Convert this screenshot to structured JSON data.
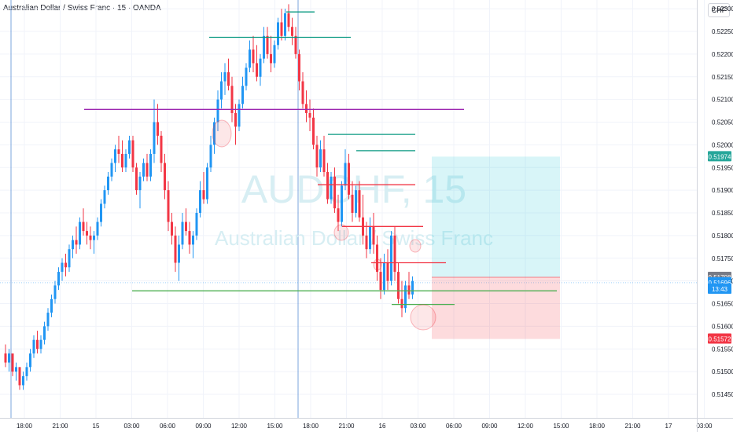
{
  "header": {
    "title": "Australian Dollar / Swiss Franc · 15 · OANDA",
    "currency": "CHF"
  },
  "watermark": {
    "symbol": "AUDCHF, 15",
    "name": "Australian Dollar / Swiss Franc"
  },
  "colors": {
    "up": "#2196f3",
    "down": "#f23645",
    "purple_line": "#9c27b0",
    "teal_line": "#089981",
    "red_line": "#f23645",
    "green_line": "#4caf50",
    "target_zone": "#26c6da",
    "stop_zone": "#f23645",
    "crosshair": "#5b8fd6"
  },
  "chart_data": {
    "type": "candlestick",
    "y_ticks": [
      "0.52300",
      "0.52250",
      "0.52200",
      "0.52150",
      "0.52100",
      "0.52050",
      "0.52000",
      "0.51950",
      "0.51900",
      "0.51850",
      "0.51800",
      "0.51750",
      "0.51700",
      "0.51650",
      "0.51600",
      "0.51550",
      "0.51500",
      "0.51450"
    ],
    "ylim": [
      0.5143,
      0.5231
    ],
    "x_ticks": [
      "18:00",
      "21:00",
      "15",
      "03:00",
      "06:00",
      "09:00",
      "12:00",
      "15:00",
      "18:00",
      "21:00",
      "16",
      "03:00",
      "06:00",
      "09:00",
      "12:00",
      "15:00",
      "18:00",
      "21:00",
      "17",
      "03:00"
    ],
    "price_badges": [
      {
        "label": "0.51974",
        "value": 0.51974,
        "color": "#26a69a"
      },
      {
        "label": "0.51708",
        "value": 0.51708,
        "color": "#787b86"
      },
      {
        "label": "0.51696",
        "value": 0.51696,
        "color": "#2196f3"
      },
      {
        "label": "13:43",
        "value": 0.51682,
        "color": "#2196f3"
      },
      {
        "label": "0.51572",
        "value": 0.51572,
        "color": "#f23645"
      }
    ],
    "levels": [
      {
        "price": 0.52078,
        "color": "purple"
      },
      {
        "price": 0.52293,
        "color": "teal"
      },
      {
        "price": 0.52237,
        "color": "teal"
      },
      {
        "price": 0.52023,
        "color": "teal"
      },
      {
        "price": 0.51987,
        "color": "teal"
      },
      {
        "price": 0.51912,
        "color": "red"
      },
      {
        "price": 0.5182,
        "color": "red"
      },
      {
        "price": 0.5174,
        "color": "red"
      },
      {
        "price": 0.51678,
        "color": "green"
      },
      {
        "price": 0.51648,
        "color": "green"
      }
    ],
    "position": {
      "entry": 0.51708,
      "target": 0.51974,
      "stop": 0.51572
    },
    "ohlc": [
      [
        0.5154,
        0.5156,
        0.5151,
        0.5152
      ],
      [
        0.5152,
        0.5155,
        0.515,
        0.5154
      ],
      [
        0.5154,
        0.5154,
        0.5149,
        0.515
      ],
      [
        0.515,
        0.5152,
        0.5148,
        0.5151
      ],
      [
        0.5151,
        0.5151,
        0.5146,
        0.5147
      ],
      [
        0.5147,
        0.515,
        0.5146,
        0.5149
      ],
      [
        0.5149,
        0.5152,
        0.5148,
        0.5151
      ],
      [
        0.5151,
        0.5155,
        0.515,
        0.5154
      ],
      [
        0.5154,
        0.5158,
        0.5153,
        0.5157
      ],
      [
        0.5157,
        0.5159,
        0.5154,
        0.5155
      ],
      [
        0.5155,
        0.5158,
        0.5154,
        0.5157
      ],
      [
        0.5157,
        0.5161,
        0.5156,
        0.516
      ],
      [
        0.516,
        0.5164,
        0.5159,
        0.5163
      ],
      [
        0.5163,
        0.5167,
        0.5162,
        0.5166
      ],
      [
        0.5166,
        0.517,
        0.5165,
        0.5169
      ],
      [
        0.5169,
        0.5173,
        0.5168,
        0.5172
      ],
      [
        0.5172,
        0.5175,
        0.517,
        0.5174
      ],
      [
        0.5174,
        0.5176,
        0.5171,
        0.5173
      ],
      [
        0.5173,
        0.5178,
        0.5172,
        0.5177
      ],
      [
        0.5177,
        0.518,
        0.5175,
        0.5179
      ],
      [
        0.5179,
        0.5182,
        0.5176,
        0.5178
      ],
      [
        0.5178,
        0.5184,
        0.5177,
        0.5183
      ],
      [
        0.5183,
        0.5186,
        0.518,
        0.5181
      ],
      [
        0.5181,
        0.5183,
        0.5178,
        0.518
      ],
      [
        0.518,
        0.5182,
        0.5177,
        0.5179
      ],
      [
        0.5179,
        0.5181,
        0.5176,
        0.518
      ],
      [
        0.518,
        0.5184,
        0.5179,
        0.5183
      ],
      [
        0.5183,
        0.5188,
        0.5182,
        0.5187
      ],
      [
        0.5187,
        0.5191,
        0.5186,
        0.519
      ],
      [
        0.519,
        0.5194,
        0.5189,
        0.5193
      ],
      [
        0.5193,
        0.5197,
        0.5192,
        0.5196
      ],
      [
        0.5196,
        0.52,
        0.5194,
        0.5199
      ],
      [
        0.5199,
        0.5202,
        0.5196,
        0.5198
      ],
      [
        0.5198,
        0.5201,
        0.5194,
        0.5195
      ],
      [
        0.5195,
        0.5199,
        0.5194,
        0.5198
      ],
      [
        0.5198,
        0.5202,
        0.5197,
        0.5201
      ],
      [
        0.5201,
        0.5202,
        0.5194,
        0.5195
      ],
      [
        0.5195,
        0.5196,
        0.5189,
        0.519
      ],
      [
        0.519,
        0.5194,
        0.5186,
        0.5193
      ],
      [
        0.5193,
        0.5197,
        0.5192,
        0.5196
      ],
      [
        0.5196,
        0.5198,
        0.5192,
        0.5193
      ],
      [
        0.5193,
        0.5199,
        0.5192,
        0.5198
      ],
      [
        0.5198,
        0.521,
        0.5196,
        0.5205
      ],
      [
        0.5205,
        0.5209,
        0.52,
        0.5202
      ],
      [
        0.5202,
        0.5203,
        0.5194,
        0.5196
      ],
      [
        0.5196,
        0.5198,
        0.5188,
        0.519
      ],
      [
        0.519,
        0.5192,
        0.5181,
        0.5183
      ],
      [
        0.5183,
        0.5185,
        0.5178,
        0.518
      ],
      [
        0.518,
        0.5182,
        0.5172,
        0.5174
      ],
      [
        0.5174,
        0.518,
        0.517,
        0.5178
      ],
      [
        0.5178,
        0.5185,
        0.5177,
        0.5183
      ],
      [
        0.5183,
        0.5186,
        0.518,
        0.5181
      ],
      [
        0.5181,
        0.5183,
        0.5176,
        0.5178
      ],
      [
        0.5178,
        0.5181,
        0.5175,
        0.518
      ],
      [
        0.518,
        0.5186,
        0.5179,
        0.5185
      ],
      [
        0.5185,
        0.5192,
        0.5184,
        0.519
      ],
      [
        0.519,
        0.5194,
        0.5187,
        0.5188
      ],
      [
        0.5188,
        0.5196,
        0.5187,
        0.5195
      ],
      [
        0.5195,
        0.5202,
        0.5194,
        0.52
      ],
      [
        0.52,
        0.5206,
        0.5198,
        0.5205
      ],
      [
        0.5205,
        0.5212,
        0.5203,
        0.521
      ],
      [
        0.521,
        0.5216,
        0.5208,
        0.5214
      ],
      [
        0.5214,
        0.5218,
        0.5211,
        0.5216
      ],
      [
        0.5216,
        0.5219,
        0.5212,
        0.5213
      ],
      [
        0.5213,
        0.5215,
        0.5205,
        0.5207
      ],
      [
        0.5207,
        0.5209,
        0.52,
        0.5204
      ],
      [
        0.5204,
        0.521,
        0.5203,
        0.5209
      ],
      [
        0.5209,
        0.5215,
        0.5208,
        0.5213
      ],
      [
        0.5213,
        0.5218,
        0.5212,
        0.5217
      ],
      [
        0.5217,
        0.5223,
        0.5216,
        0.5221
      ],
      [
        0.5221,
        0.5224,
        0.5216,
        0.5218
      ],
      [
        0.5218,
        0.5222,
        0.5214,
        0.5215
      ],
      [
        0.5215,
        0.522,
        0.5213,
        0.5219
      ],
      [
        0.5219,
        0.5226,
        0.5218,
        0.5224
      ],
      [
        0.5224,
        0.5226,
        0.5219,
        0.522
      ],
      [
        0.522,
        0.5224,
        0.5216,
        0.5218
      ],
      [
        0.5218,
        0.5223,
        0.5217,
        0.5222
      ],
      [
        0.5222,
        0.5228,
        0.5221,
        0.5227
      ],
      [
        0.5227,
        0.523,
        0.5223,
        0.5224
      ],
      [
        0.5224,
        0.523,
        0.5223,
        0.5229
      ],
      [
        0.5229,
        0.5231,
        0.5225,
        0.5226
      ],
      [
        0.5226,
        0.5228,
        0.5222,
        0.5224
      ],
      [
        0.5224,
        0.5226,
        0.5219,
        0.522
      ],
      [
        0.522,
        0.5221,
        0.5212,
        0.5214
      ],
      [
        0.5214,
        0.5216,
        0.5208,
        0.5209
      ],
      [
        0.5209,
        0.5212,
        0.5205,
        0.5207
      ],
      [
        0.5207,
        0.521,
        0.5203,
        0.5206
      ],
      [
        0.5206,
        0.5208,
        0.5199,
        0.52
      ],
      [
        0.52,
        0.5202,
        0.5193,
        0.5195
      ],
      [
        0.5195,
        0.5201,
        0.5194,
        0.5199
      ],
      [
        0.5199,
        0.5202,
        0.5193,
        0.5194
      ],
      [
        0.5194,
        0.5196,
        0.5187,
        0.5188
      ],
      [
        0.5188,
        0.5194,
        0.5187,
        0.5193
      ],
      [
        0.5193,
        0.5195,
        0.5185,
        0.5186
      ],
      [
        0.5186,
        0.5189,
        0.5181,
        0.5183
      ],
      [
        0.5183,
        0.5192,
        0.5182,
        0.5191
      ],
      [
        0.5191,
        0.5199,
        0.519,
        0.5196
      ],
      [
        0.5196,
        0.5198,
        0.5188,
        0.5189
      ],
      [
        0.5189,
        0.5192,
        0.5183,
        0.5185
      ],
      [
        0.5185,
        0.5191,
        0.5184,
        0.519
      ],
      [
        0.519,
        0.5192,
        0.5183,
        0.5184
      ],
      [
        0.5184,
        0.5189,
        0.5178,
        0.518
      ],
      [
        0.518,
        0.5183,
        0.5175,
        0.5177
      ],
      [
        0.5177,
        0.5184,
        0.5176,
        0.5182
      ],
      [
        0.5182,
        0.5185,
        0.5176,
        0.5178
      ],
      [
        0.5178,
        0.518,
        0.517,
        0.5172
      ],
      [
        0.5172,
        0.5175,
        0.5166,
        0.5168
      ],
      [
        0.5168,
        0.5176,
        0.5167,
        0.5174
      ],
      [
        0.5174,
        0.5177,
        0.5168,
        0.517
      ],
      [
        0.517,
        0.5181,
        0.5169,
        0.518
      ],
      [
        0.518,
        0.5182,
        0.517,
        0.5172
      ],
      [
        0.5172,
        0.5174,
        0.5165,
        0.5166
      ],
      [
        0.5166,
        0.517,
        0.5162,
        0.5164
      ],
      [
        0.5164,
        0.517,
        0.5163,
        0.5169
      ],
      [
        0.5169,
        0.5172,
        0.5166,
        0.5167
      ],
      [
        0.5167,
        0.5171,
        0.5166,
        0.517
      ]
    ]
  }
}
